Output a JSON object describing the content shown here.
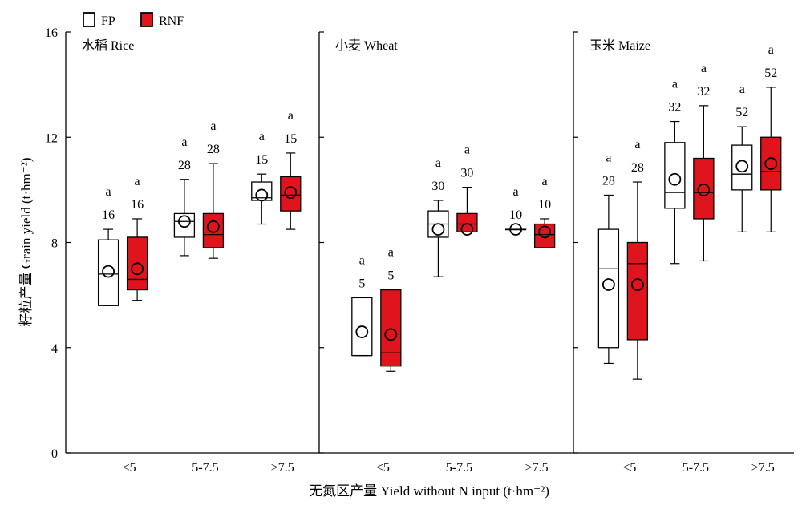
{
  "chart_data": {
    "type": "boxplot",
    "legend": {
      "placement": "top-left",
      "entries": [
        {
          "label": "FP",
          "color": "#ffffff"
        },
        {
          "label": "RNF",
          "color": "#e0141c"
        }
      ]
    },
    "ylabel": "籽粒产量 Grain yield (t·hm⁻²)",
    "xlabel": "无氮区产量 Yield without N input (t·hm⁻²)",
    "ylim": [
      0,
      16
    ],
    "yticks": [
      "0",
      "4",
      "8",
      "12",
      "16"
    ],
    "categories": [
      "<5",
      "5-7.5",
      ">7.5"
    ],
    "panels": [
      {
        "title": "水稻 Rice",
        "groups": [
          {
            "category": "<5",
            "FP": {
              "min": 5.6,
              "q1": 5.6,
              "median": 6.8,
              "q3": 8.1,
              "max": 8.5,
              "mean": 6.9,
              "n": "16",
              "sig": "a"
            },
            "RNF": {
              "min": 5.8,
              "q1": 6.2,
              "median": 6.6,
              "q3": 8.2,
              "max": 8.9,
              "mean": 7.0,
              "n": "16",
              "sig": "a"
            }
          },
          {
            "category": "5-7.5",
            "FP": {
              "min": 7.5,
              "q1": 8.2,
              "median": 8.8,
              "q3": 9.1,
              "max": 10.4,
              "mean": 8.8,
              "n": "28",
              "sig": "a"
            },
            "RNF": {
              "min": 7.4,
              "q1": 7.8,
              "median": 8.3,
              "q3": 9.1,
              "max": 11.0,
              "mean": 8.6,
              "n": "28",
              "sig": "a"
            }
          },
          {
            "category": ">7.5",
            "FP": {
              "min": 8.7,
              "q1": 9.6,
              "median": 9.7,
              "q3": 10.3,
              "max": 10.6,
              "mean": 9.8,
              "n": "15",
              "sig": "a"
            },
            "RNF": {
              "min": 8.5,
              "q1": 9.2,
              "median": 9.8,
              "q3": 10.5,
              "max": 11.4,
              "mean": 9.9,
              "n": "15",
              "sig": "a"
            }
          }
        ]
      },
      {
        "title": "小麦 Wheat",
        "groups": [
          {
            "category": "<5",
            "FP": {
              "min": 3.7,
              "q1": 3.7,
              "median": 3.7,
              "q3": 5.9,
              "max": 5.9,
              "mean": 4.6,
              "n": "5",
              "sig": "a"
            },
            "RNF": {
              "min": 3.1,
              "q1": 3.3,
              "median": 3.8,
              "q3": 6.2,
              "max": 6.2,
              "mean": 4.5,
              "n": "5",
              "sig": "a"
            }
          },
          {
            "category": "5-7.5",
            "FP": {
              "min": 6.7,
              "q1": 8.2,
              "median": 8.7,
              "q3": 9.2,
              "max": 9.6,
              "mean": 8.5,
              "n": "30",
              "sig": "a"
            },
            "RNF": {
              "min": 8.4,
              "q1": 8.4,
              "median": 8.7,
              "q3": 9.1,
              "max": 10.1,
              "mean": 8.5,
              "n": "30",
              "sig": "a"
            }
          },
          {
            "category": ">7.5",
            "FP": {
              "min": 8.5,
              "q1": 8.5,
              "median": 8.5,
              "q3": 8.5,
              "max": 8.5,
              "mean": 8.5,
              "n": "10",
              "sig": "a"
            },
            "RNF": {
              "min": 7.8,
              "q1": 7.8,
              "median": 8.3,
              "q3": 8.7,
              "max": 8.9,
              "mean": 8.4,
              "n": "10",
              "sig": "a"
            }
          }
        ]
      },
      {
        "title": "玉米 Maize",
        "groups": [
          {
            "category": "<5",
            "FP": {
              "min": 3.4,
              "q1": 4.0,
              "median": 7.0,
              "q3": 8.5,
              "max": 9.8,
              "mean": 6.4,
              "n": "28",
              "sig": "a"
            },
            "RNF": {
              "min": 2.8,
              "q1": 4.3,
              "median": 7.2,
              "q3": 8.0,
              "max": 10.3,
              "mean": 6.4,
              "n": "28",
              "sig": "a"
            }
          },
          {
            "category": "5-7.5",
            "FP": {
              "min": 7.2,
              "q1": 9.3,
              "median": 9.9,
              "q3": 11.8,
              "max": 12.6,
              "mean": 10.4,
              "n": "32",
              "sig": "a"
            },
            "RNF": {
              "min": 7.3,
              "q1": 8.9,
              "median": 9.9,
              "q3": 11.2,
              "max": 13.2,
              "mean": 10.0,
              "n": "32",
              "sig": "a"
            }
          },
          {
            "category": ">7.5",
            "FP": {
              "min": 8.4,
              "q1": 10.0,
              "median": 10.6,
              "q3": 11.7,
              "max": 12.4,
              "mean": 10.9,
              "n": "52",
              "sig": "a"
            },
            "RNF": {
              "min": 8.4,
              "q1": 10.0,
              "median": 10.7,
              "q3": 12.0,
              "max": 13.9,
              "mean": 11.0,
              "n": "52",
              "sig": "a"
            }
          }
        ]
      }
    ]
  }
}
